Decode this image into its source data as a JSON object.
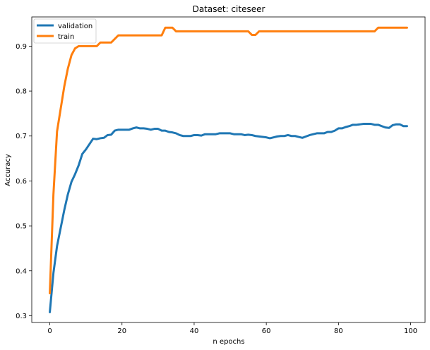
{
  "chart_data": {
    "type": "line",
    "title": "Dataset: citeseer",
    "xlabel": "n epochs",
    "ylabel": "Accuracy",
    "xlim": [
      -5,
      104
    ],
    "ylim": [
      0.285,
      0.965
    ],
    "xticks": [
      0,
      20,
      40,
      60,
      80,
      100
    ],
    "yticks": [
      0.3,
      0.4,
      0.5,
      0.6,
      0.7,
      0.8,
      0.9
    ],
    "ytick_labels": [
      "0.3",
      "0.4",
      "0.5",
      "0.6",
      "0.7",
      "0.8",
      "0.9"
    ],
    "grid": false,
    "legend": "upper-left",
    "series": [
      {
        "name": "validation",
        "color": "#1f77b4",
        "x": [
          0,
          1,
          2,
          3,
          4,
          5,
          6,
          7,
          8,
          9,
          10,
          11,
          12,
          13,
          14,
          15,
          16,
          17,
          18,
          19,
          20,
          21,
          22,
          23,
          24,
          25,
          26,
          27,
          28,
          29,
          30,
          31,
          32,
          33,
          34,
          35,
          36,
          37,
          38,
          39,
          40,
          41,
          42,
          43,
          44,
          45,
          46,
          47,
          48,
          49,
          50,
          51,
          52,
          53,
          54,
          55,
          56,
          57,
          58,
          59,
          60,
          61,
          62,
          63,
          64,
          65,
          66,
          67,
          68,
          69,
          70,
          71,
          72,
          73,
          74,
          75,
          76,
          77,
          78,
          79,
          80,
          81,
          82,
          83,
          84,
          85,
          86,
          87,
          88,
          89,
          90,
          91,
          92,
          93,
          94,
          95,
          96,
          97,
          98,
          99
        ],
        "values": [
          0.308,
          0.395,
          0.455,
          0.495,
          0.535,
          0.57,
          0.598,
          0.615,
          0.635,
          0.66,
          0.67,
          0.682,
          0.694,
          0.693,
          0.695,
          0.696,
          0.702,
          0.703,
          0.712,
          0.714,
          0.714,
          0.714,
          0.714,
          0.717,
          0.719,
          0.717,
          0.717,
          0.716,
          0.714,
          0.716,
          0.716,
          0.712,
          0.712,
          0.709,
          0.708,
          0.706,
          0.702,
          0.7,
          0.7,
          0.7,
          0.702,
          0.702,
          0.701,
          0.704,
          0.704,
          0.704,
          0.704,
          0.706,
          0.706,
          0.706,
          0.706,
          0.704,
          0.704,
          0.704,
          0.702,
          0.703,
          0.702,
          0.7,
          0.699,
          0.698,
          0.697,
          0.695,
          0.697,
          0.699,
          0.7,
          0.7,
          0.702,
          0.7,
          0.7,
          0.698,
          0.696,
          0.699,
          0.702,
          0.704,
          0.706,
          0.706,
          0.706,
          0.709,
          0.709,
          0.712,
          0.717,
          0.717,
          0.72,
          0.722,
          0.725,
          0.725,
          0.726,
          0.727,
          0.727,
          0.727,
          0.725,
          0.725,
          0.722,
          0.719,
          0.718,
          0.724,
          0.726,
          0.726,
          0.722,
          0.722
        ]
      },
      {
        "name": "train",
        "color": "#ff7f0e",
        "x": [
          0,
          1,
          2,
          3,
          4,
          5,
          6,
          7,
          8,
          9,
          10,
          11,
          12,
          13,
          14,
          15,
          16,
          17,
          18,
          19,
          20,
          21,
          22,
          23,
          24,
          25,
          26,
          27,
          28,
          29,
          30,
          31,
          32,
          33,
          34,
          35,
          36,
          37,
          38,
          39,
          40,
          41,
          42,
          43,
          44,
          45,
          46,
          47,
          48,
          49,
          50,
          51,
          52,
          53,
          54,
          55,
          56,
          57,
          58,
          59,
          60,
          61,
          62,
          63,
          64,
          65,
          66,
          67,
          68,
          69,
          70,
          71,
          72,
          73,
          74,
          75,
          76,
          77,
          78,
          79,
          80,
          81,
          82,
          83,
          84,
          85,
          86,
          87,
          88,
          89,
          90,
          91,
          92,
          93,
          94,
          95,
          96,
          97,
          98,
          99
        ],
        "values": [
          0.35,
          0.57,
          0.71,
          0.76,
          0.81,
          0.85,
          0.88,
          0.895,
          0.9,
          0.9,
          0.9,
          0.9,
          0.9,
          0.9,
          0.908,
          0.908,
          0.908,
          0.908,
          0.916,
          0.924,
          0.924,
          0.924,
          0.924,
          0.924,
          0.924,
          0.924,
          0.924,
          0.924,
          0.924,
          0.924,
          0.924,
          0.924,
          0.941,
          0.941,
          0.941,
          0.933,
          0.933,
          0.933,
          0.933,
          0.933,
          0.933,
          0.933,
          0.933,
          0.933,
          0.933,
          0.933,
          0.933,
          0.933,
          0.933,
          0.933,
          0.933,
          0.933,
          0.933,
          0.933,
          0.933,
          0.933,
          0.925,
          0.925,
          0.933,
          0.933,
          0.933,
          0.933,
          0.933,
          0.933,
          0.933,
          0.933,
          0.933,
          0.933,
          0.933,
          0.933,
          0.933,
          0.933,
          0.933,
          0.933,
          0.933,
          0.933,
          0.933,
          0.933,
          0.933,
          0.933,
          0.933,
          0.933,
          0.933,
          0.933,
          0.933,
          0.933,
          0.933,
          0.933,
          0.933,
          0.933,
          0.933,
          0.941,
          0.941,
          0.941,
          0.941,
          0.941,
          0.941,
          0.941,
          0.941,
          0.941
        ]
      }
    ]
  }
}
